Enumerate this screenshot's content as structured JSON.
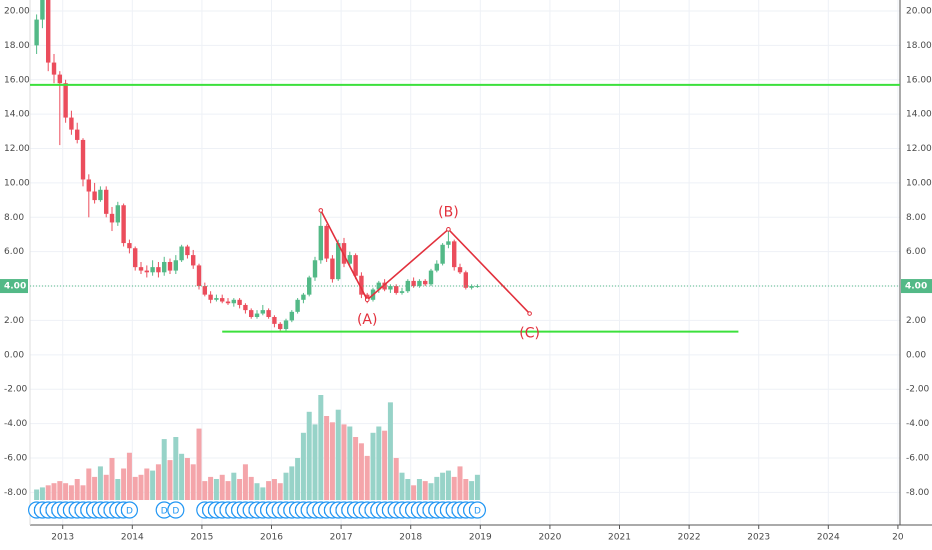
{
  "chart_data": {
    "type": "candlestick",
    "x": [
      "2012-08",
      "2012-09",
      "2012-10",
      "2012-11",
      "2012-12",
      "2013-01",
      "2013-02",
      "2013-03",
      "2013-04",
      "2013-05",
      "2013-06",
      "2013-07",
      "2013-08",
      "2013-09",
      "2013-10",
      "2013-11",
      "2013-12",
      "2014-01",
      "2014-02",
      "2014-03",
      "2014-04",
      "2014-05",
      "2014-06",
      "2014-07",
      "2014-08",
      "2014-09",
      "2014-10",
      "2014-11",
      "2014-12",
      "2015-01",
      "2015-02",
      "2015-03",
      "2015-04",
      "2015-05",
      "2015-06",
      "2015-07",
      "2015-08",
      "2015-09",
      "2015-10",
      "2015-11",
      "2015-12",
      "2016-01",
      "2016-02",
      "2016-03",
      "2016-04",
      "2016-05",
      "2016-06",
      "2016-07",
      "2016-08",
      "2016-09",
      "2016-10",
      "2016-11",
      "2016-12",
      "2017-01",
      "2017-02",
      "2017-03",
      "2017-04",
      "2017-05",
      "2017-06",
      "2017-07",
      "2017-08",
      "2017-09",
      "2017-10",
      "2017-11",
      "2017-12",
      "2018-01",
      "2018-02",
      "2018-03",
      "2018-04",
      "2018-05",
      "2018-06",
      "2018-07",
      "2018-08",
      "2018-09",
      "2018-10",
      "2018-11",
      "2018-12"
    ],
    "open": [
      18,
      19.5,
      21,
      17,
      16.3,
      15.8,
      13.8,
      13.1,
      12.5,
      10.2,
      9.5,
      9.0,
      9.6,
      8.2,
      7.7,
      8.7,
      6.5,
      6.2,
      5.1,
      4.9,
      4.8,
      5.1,
      4.8,
      5.4,
      4.9,
      5.5,
      6.3,
      5.8,
      5.2,
      4.0,
      3.5,
      3.2,
      3.3,
      3.1,
      3.0,
      3.2,
      2.9,
      2.6,
      2.2,
      2.4,
      2.6,
      2.2,
      1.8,
      1.5,
      2.0,
      2.5,
      3.2,
      3.5,
      4.5,
      5.5,
      7.5,
      5.6,
      4.4,
      6.5,
      5.3,
      5.8,
      4.6,
      3.5,
      3.2,
      3.8,
      4.2,
      3.8,
      4.0,
      3.6,
      3.7,
      4.3,
      4.0,
      4.3,
      4.1,
      4.9,
      5.3,
      6.4,
      6.6,
      5.1,
      4.8,
      3.9,
      4.0
    ],
    "high": [
      19.8,
      21.5,
      21.5,
      17.5,
      16.5,
      16,
      14.2,
      13.5,
      12.6,
      10.5,
      10.0,
      9.8,
      9.8,
      8.6,
      8.9,
      8.8,
      6.7,
      6.3,
      5.4,
      5.2,
      5.5,
      5.4,
      5.7,
      5.6,
      5.8,
      6.4,
      6.4,
      6.1,
      5.3,
      4.2,
      3.7,
      3.5,
      3.5,
      3.3,
      3.3,
      3.3,
      3.0,
      2.7,
      2.6,
      2.9,
      2.7,
      2.3,
      1.9,
      2.1,
      2.6,
      3.3,
      3.6,
      4.6,
      5.7,
      8.4,
      7.6,
      5.8,
      6.7,
      6.8,
      6.0,
      5.9,
      4.8,
      3.6,
      3.9,
      4.3,
      4.4,
      4.1,
      4.1,
      3.9,
      4.4,
      4.5,
      4.4,
      4.4,
      5.0,
      5.5,
      6.5,
      7.3,
      6.7,
      5.3,
      4.9,
      4.1,
      4.1
    ],
    "low": [
      17.5,
      19,
      16.5,
      15.8,
      12.2,
      13.5,
      12.8,
      12.3,
      9.8,
      8.0,
      8.8,
      8.9,
      8.0,
      7.2,
      7.5,
      6.3,
      5.9,
      4.9,
      4.7,
      4.5,
      4.6,
      4.5,
      4.6,
      4.7,
      4.7,
      5.4,
      5.6,
      5.0,
      3.8,
      3.4,
      3.0,
      3.1,
      3.0,
      2.9,
      2.8,
      2.7,
      2.4,
      2.1,
      2.1,
      2.3,
      2.1,
      1.6,
      1.4,
      1.4,
      1.9,
      2.4,
      3.0,
      3.4,
      4.3,
      5.3,
      5.4,
      4.2,
      4.3,
      5.1,
      5.1,
      4.4,
      3.3,
      3.0,
      3.1,
      3.6,
      3.7,
      3.6,
      3.5,
      3.5,
      3.6,
      3.9,
      3.9,
      4.0,
      4.0,
      4.8,
      5.2,
      6.2,
      4.9,
      4.7,
      3.8,
      3.8,
      3.9
    ],
    "close": [
      19.5,
      21,
      17,
      16.3,
      15.8,
      13.8,
      13.1,
      12.5,
      10.2,
      9.5,
      9.0,
      9.6,
      8.2,
      7.7,
      8.7,
      6.5,
      6.2,
      5.1,
      4.9,
      4.8,
      5.1,
      4.8,
      5.4,
      4.9,
      5.5,
      6.3,
      5.8,
      5.2,
      4.0,
      3.5,
      3.2,
      3.3,
      3.1,
      3.0,
      3.2,
      2.9,
      2.6,
      2.2,
      2.4,
      2.6,
      2.2,
      1.8,
      1.5,
      2.0,
      2.5,
      3.2,
      3.5,
      4.5,
      5.5,
      7.5,
      5.6,
      4.4,
      6.5,
      5.3,
      5.8,
      4.6,
      3.5,
      3.2,
      3.8,
      4.2,
      3.8,
      4.0,
      3.6,
      3.7,
      4.3,
      4.0,
      4.3,
      4.1,
      4.9,
      5.3,
      6.4,
      6.6,
      5.1,
      4.8,
      3.9,
      4.0,
      4.0
    ],
    "volume": [
      10,
      12,
      14,
      16,
      18,
      16,
      14,
      20,
      14,
      30,
      22,
      32,
      24,
      40,
      20,
      30,
      45,
      22,
      24,
      30,
      28,
      34,
      58,
      38,
      60,
      44,
      40,
      34,
      68,
      18,
      22,
      20,
      24,
      18,
      26,
      20,
      34,
      22,
      16,
      12,
      18,
      20,
      16,
      26,
      32,
      40,
      64,
      84,
      72,
      100,
      80,
      74,
      86,
      72,
      70,
      60,
      54,
      42,
      64,
      70,
      66,
      93,
      40,
      26,
      20,
      14,
      20,
      18,
      16,
      22,
      26,
      28,
      22,
      32,
      20,
      18,
      24
    ],
    "up_color": "#53b987",
    "down_color": "#eb4d5c",
    "volume_up_color": "#97d3c8",
    "volume_down_color": "#f4a5aa",
    "xlim": [
      2012.53,
      2025.03
    ],
    "xticks": [
      2013,
      2014,
      2015,
      2016,
      2017,
      2018,
      2019,
      2020,
      2021,
      2022,
      2023,
      2024,
      {
        "value": 2025,
        "label": "20"
      }
    ],
    "ylim": [
      -9.9,
      20.64
    ],
    "yticks": [
      {
        "value": 20,
        "label": "20.00"
      },
      {
        "value": 18,
        "label": "18.00"
      },
      {
        "value": 16,
        "label": "16.00"
      },
      {
        "value": 14,
        "label": "14.00"
      },
      {
        "value": 12,
        "label": "12.00"
      },
      {
        "value": 10,
        "label": "10.00"
      },
      {
        "value": 8,
        "label": "8.00"
      },
      {
        "value": 6,
        "label": "6.00"
      },
      {
        "value": 4,
        "label": "4.00"
      },
      {
        "value": 2,
        "label": "2.00"
      },
      {
        "value": 0,
        "label": "0.00"
      },
      {
        "value": -2,
        "label": "-2.00"
      },
      {
        "value": -4,
        "label": "-4.00"
      },
      {
        "value": -6,
        "label": "-6.00"
      },
      {
        "value": -8,
        "label": "-8.00"
      }
    ],
    "grid": true,
    "price_line": {
      "value": 4,
      "label": "4.00",
      "color": "#53b987"
    },
    "support_lines": [
      {
        "value": 15.7,
        "color": "#3ce03c"
      },
      {
        "value": 1.35,
        "x": [
          "2015-04",
          "2022-09"
        ],
        "color": "#3ce03c"
      }
    ],
    "elliott_wave": {
      "color": "#e2313d",
      "x": [
        "2016-09",
        "2017-05",
        "2018-07",
        "2019-09"
      ],
      "values": [
        8.4,
        3.2,
        7.3,
        2.4
      ],
      "labels": [
        null,
        "(A)",
        "(B)",
        "(C)"
      ]
    },
    "dividend_markers": {
      "label": "D",
      "color": "#2196f3",
      "x": [
        "2012-08",
        "2012-09",
        "2012-10",
        "2012-11",
        "2012-12",
        "2013-01",
        "2013-02",
        "2013-03",
        "2013-04",
        "2013-05",
        "2013-06",
        "2013-07",
        "2013-08",
        "2013-09",
        "2013-10",
        "2013-11",
        "2013-12",
        "2014-06",
        "2014-08",
        "2015-01",
        "2015-02",
        "2015-03",
        "2015-04",
        "2015-05",
        "2015-06",
        "2015-07",
        "2015-08",
        "2015-09",
        "2015-10",
        "2015-11",
        "2015-12",
        "2016-01",
        "2016-02",
        "2016-03",
        "2016-04",
        "2016-05",
        "2016-06",
        "2016-07",
        "2016-08",
        "2016-09",
        "2016-10",
        "2016-11",
        "2016-12",
        "2017-01",
        "2017-02",
        "2017-03",
        "2017-04",
        "2017-05",
        "2017-06",
        "2017-07",
        "2017-08",
        "2017-09",
        "2017-10",
        "2017-11",
        "2017-12",
        "2018-01",
        "2018-02",
        "2018-03",
        "2018-04",
        "2018-05",
        "2018-06",
        "2018-07",
        "2018-08",
        "2018-09",
        "2018-10",
        "2018-11",
        "2018-12"
      ]
    }
  }
}
